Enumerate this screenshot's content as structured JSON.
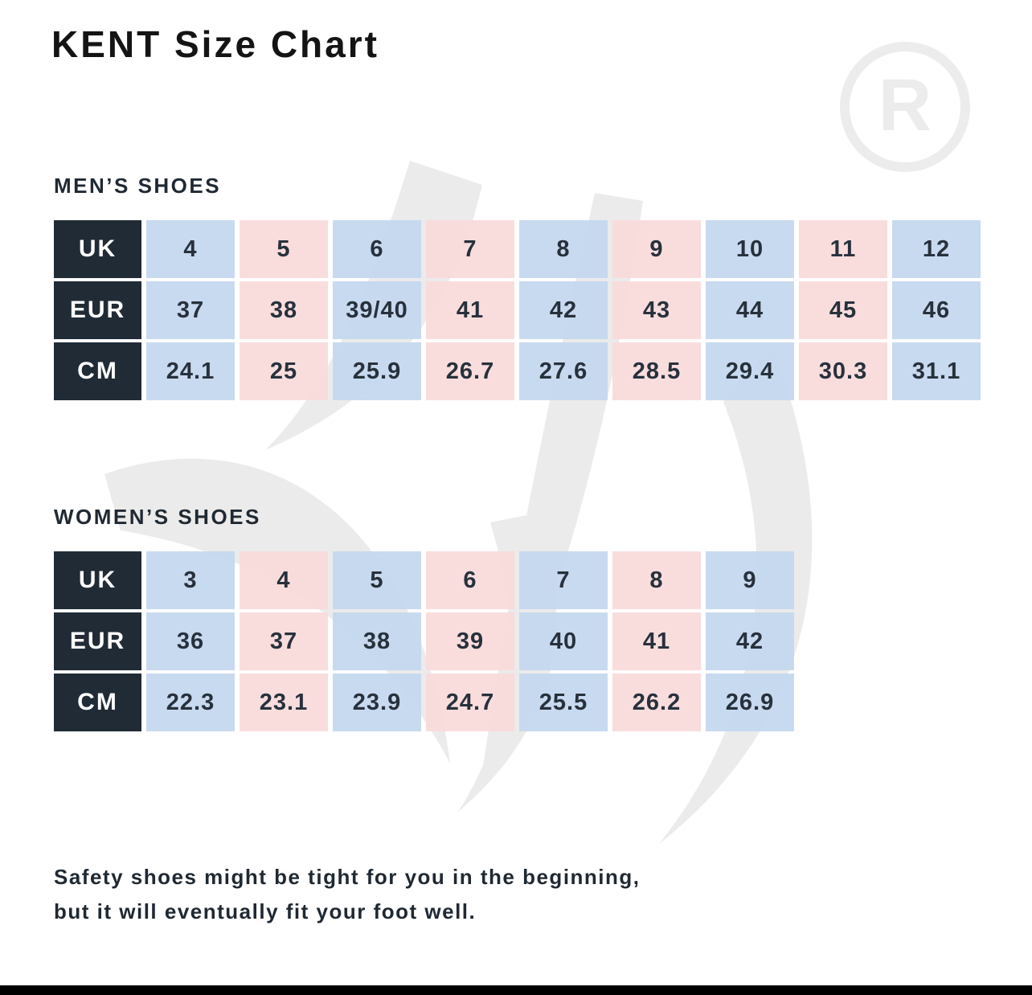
{
  "title": "KENT Size Chart",
  "watermark_mark": "R",
  "men": {
    "heading": "MEN’S SHOES",
    "rows": [
      {
        "label": "UK",
        "values": [
          "4",
          "5",
          "6",
          "7",
          "8",
          "9",
          "10",
          "11",
          "12"
        ]
      },
      {
        "label": "EUR",
        "values": [
          "37",
          "38",
          "39/40",
          "41",
          "42",
          "43",
          "44",
          "45",
          "46"
        ]
      },
      {
        "label": "CM",
        "values": [
          "24.1",
          "25",
          "25.9",
          "26.7",
          "27.6",
          "28.5",
          "29.4",
          "30.3",
          "31.1"
        ]
      }
    ]
  },
  "women": {
    "heading": "WOMEN’S SHOES",
    "rows": [
      {
        "label": "UK",
        "values": [
          "3",
          "4",
          "5",
          "6",
          "7",
          "8",
          "9"
        ]
      },
      {
        "label": "EUR",
        "values": [
          "36",
          "37",
          "38",
          "39",
          "40",
          "41",
          "42"
        ]
      },
      {
        "label": "CM",
        "values": [
          "22.3",
          "23.1",
          "23.9",
          "24.7",
          "25.5",
          "26.2",
          "26.9"
        ]
      }
    ]
  },
  "note": {
    "line1": "Safety shoes might be tight for you in the beginning,",
    "line2": "but it will eventually fit your foot well."
  },
  "colors": {
    "label_bg": "#202b36",
    "cell_blue": "#c3d7ee",
    "cell_pink": "#f8dada",
    "text": "#1f2933"
  }
}
